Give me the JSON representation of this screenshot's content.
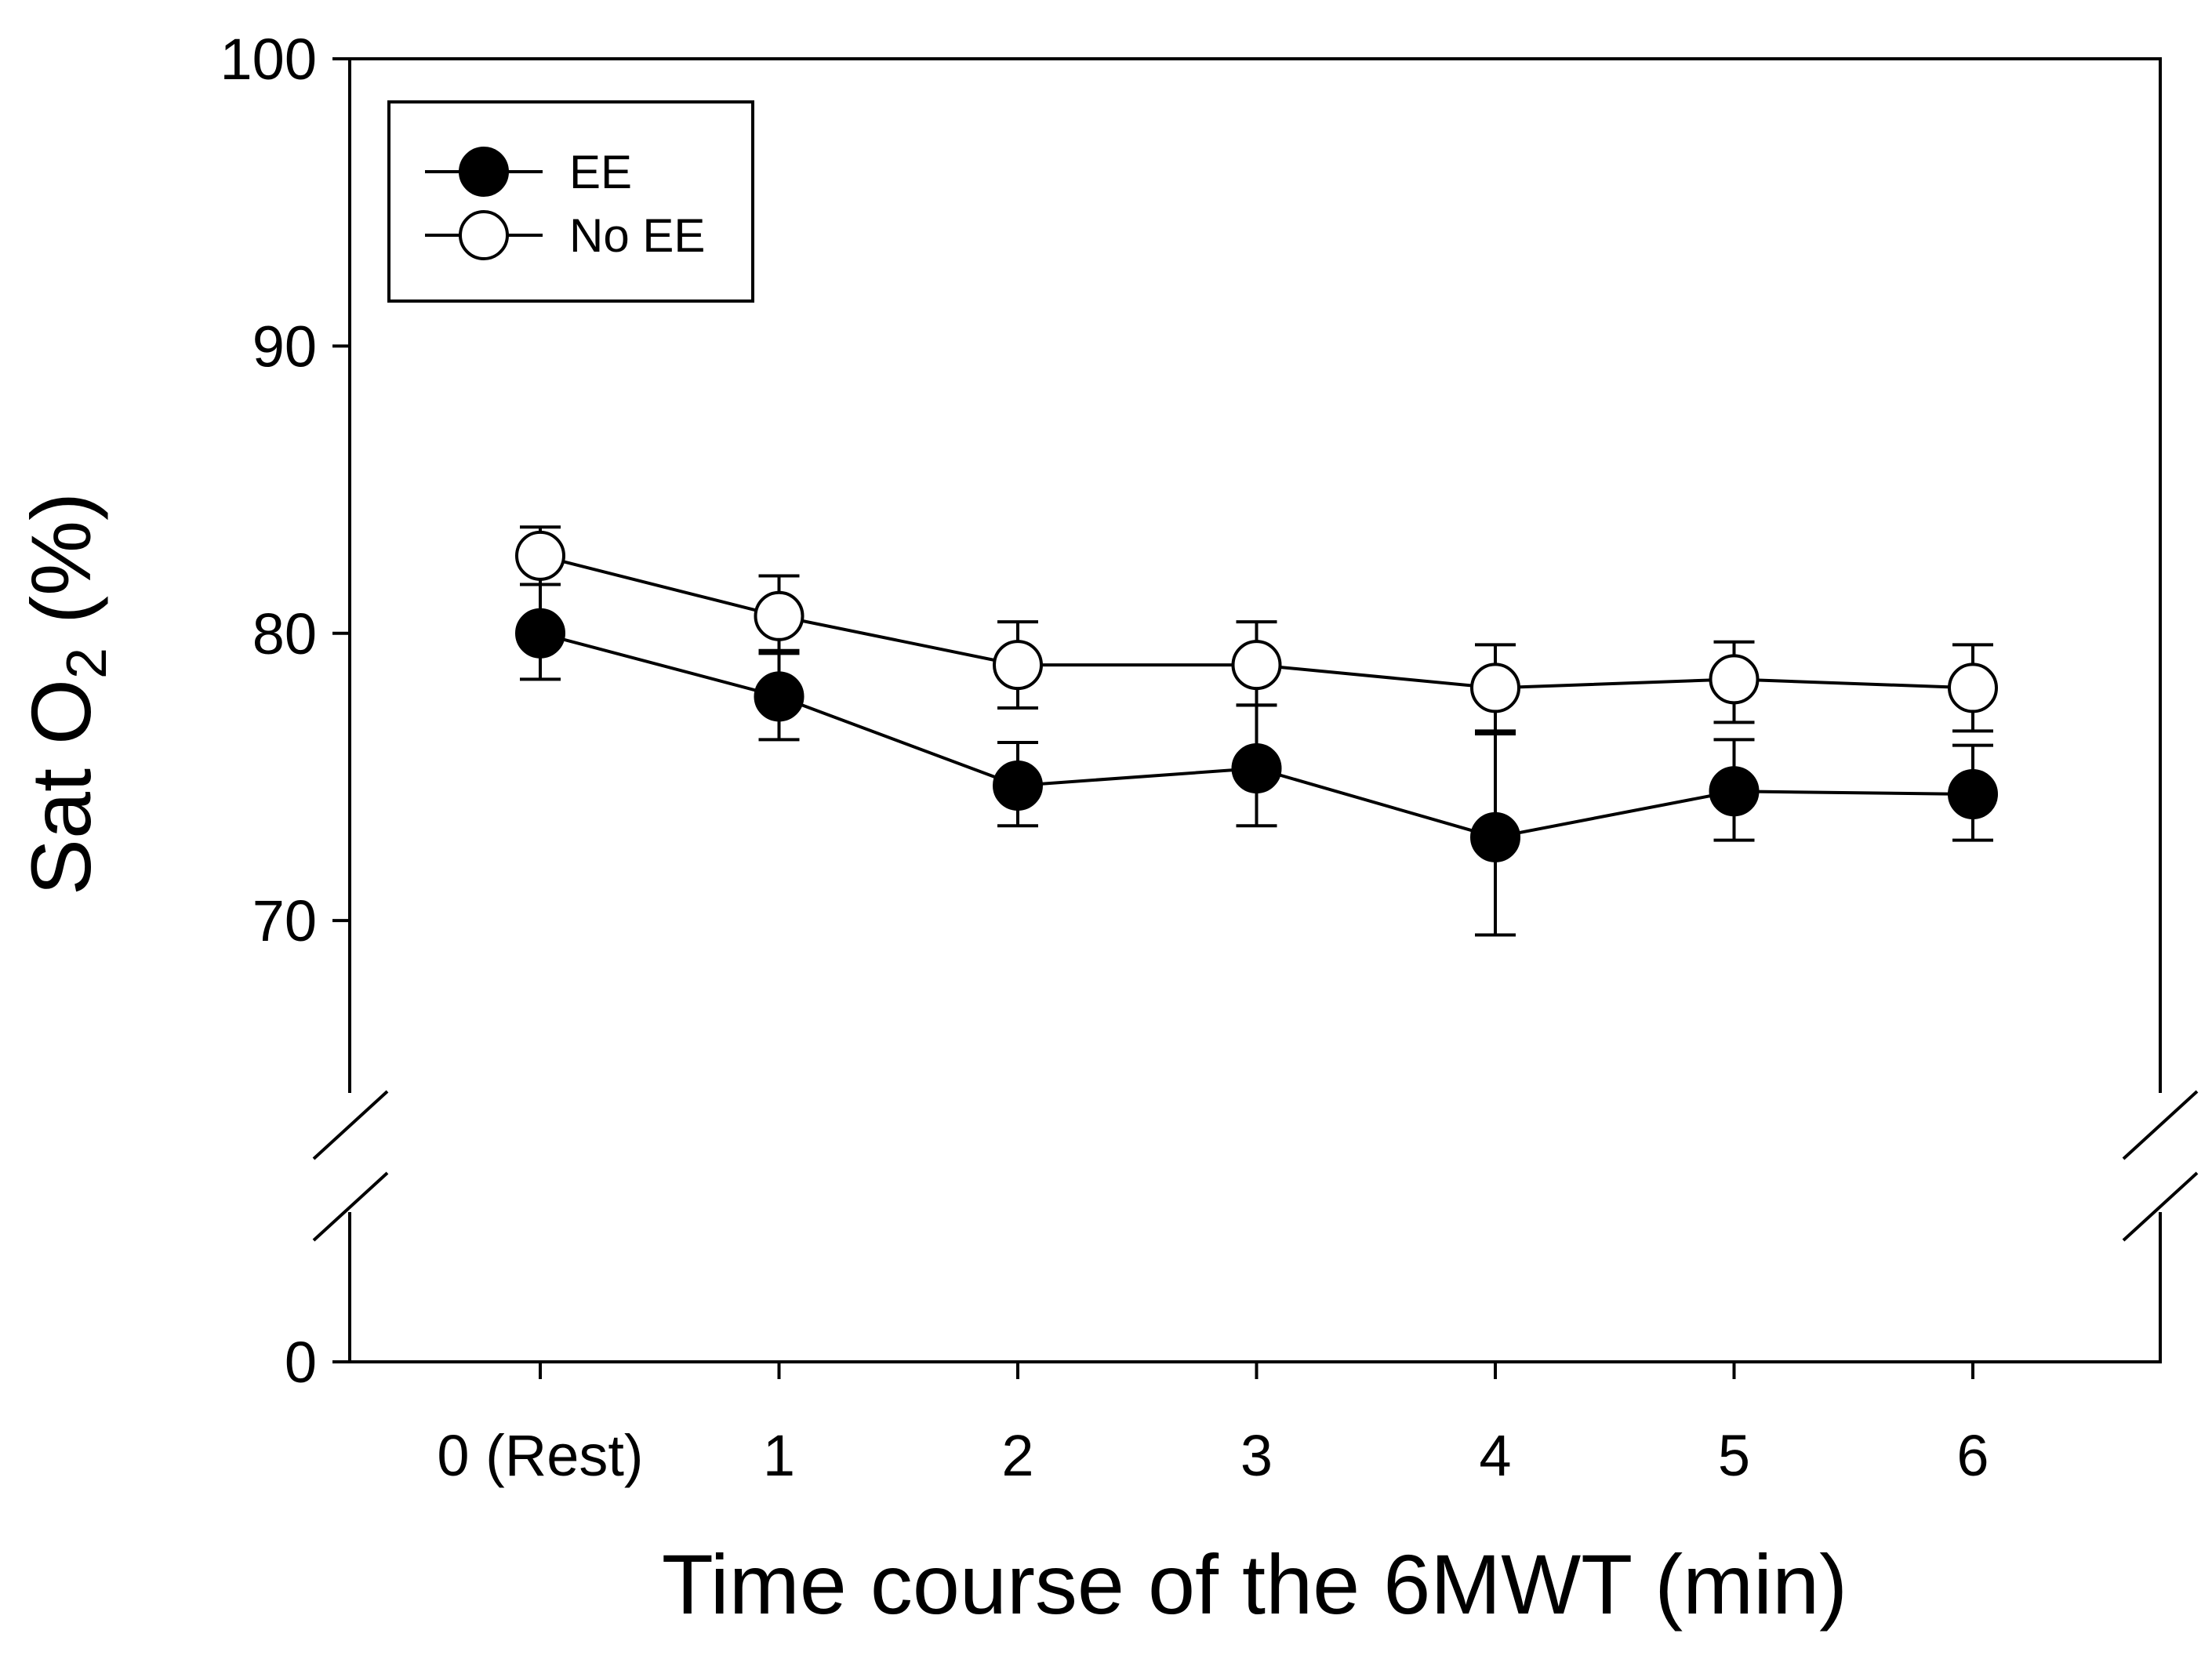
{
  "chart_data": {
    "type": "line",
    "title": "",
    "xlabel": "Time course of the 6MWT (min)",
    "ylabel_main": "Sat O",
    "ylabel_sub": "2",
    "ylabel_tail": " (%)",
    "categories": [
      "0 (Rest)",
      "1",
      "2",
      "3",
      "4",
      "5",
      "6"
    ],
    "y_ticks_upper": [
      "70",
      "80",
      "90",
      "100"
    ],
    "y_tick_upper_values": [
      70,
      80,
      90,
      100
    ],
    "y_tick_lower": "0",
    "y_tick_lower_value": 0,
    "ylim_upper": [
      64,
      100
    ],
    "axis_break": true,
    "legend_position": "top-left",
    "series": [
      {
        "name": "EE",
        "marker": "filled-circle",
        "values": [
          80.0,
          77.8,
          74.7,
          75.3,
          72.9,
          74.5,
          74.4
        ],
        "err_upper": [
          81.7,
          79.4,
          76.2,
          77.5,
          76.5,
          76.3,
          76.1
        ],
        "err_lower": [
          78.4,
          76.3,
          73.3,
          73.3,
          69.5,
          72.8,
          72.8
        ]
      },
      {
        "name": "No EE",
        "marker": "open-circle",
        "values": [
          82.7,
          80.6,
          78.9,
          78.9,
          78.1,
          78.4,
          78.1
        ],
        "err_upper": [
          83.7,
          82.0,
          80.4,
          80.4,
          79.6,
          79.7,
          79.6
        ],
        "err_lower": [
          81.7,
          79.3,
          77.4,
          77.5,
          76.6,
          76.9,
          76.6
        ]
      }
    ]
  }
}
